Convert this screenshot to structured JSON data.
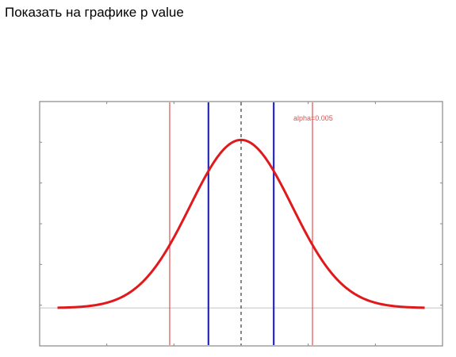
{
  "title": "Показать на графике p value",
  "colors": {
    "curve": "#e0191c",
    "alpha_line": "#e05050",
    "ci_line": "#2828b8",
    "mean_line": "#555555",
    "baseline": "#c8c8c8",
    "frame": "#888888"
  },
  "chart_data": {
    "type": "line",
    "title": "",
    "xlabel": "",
    "ylabel": "",
    "xlim": [
      -3.95,
      3.95
    ],
    "ylim": [
      -0.09,
      0.49
    ],
    "grid": false,
    "legend": "none",
    "distribution": "normal",
    "mean": 0,
    "sd": 1,
    "curve_x_range": [
      -3.6,
      3.6
    ],
    "annotation": "alpha=0.005",
    "vertical_lines": [
      {
        "kind": "alpha",
        "x": -1.4
      },
      {
        "kind": "alpha",
        "x": 1.4
      },
      {
        "kind": "ci",
        "x": -0.64
      },
      {
        "kind": "ci",
        "x": 0.64
      },
      {
        "kind": "mean",
        "x": 0
      }
    ]
  }
}
